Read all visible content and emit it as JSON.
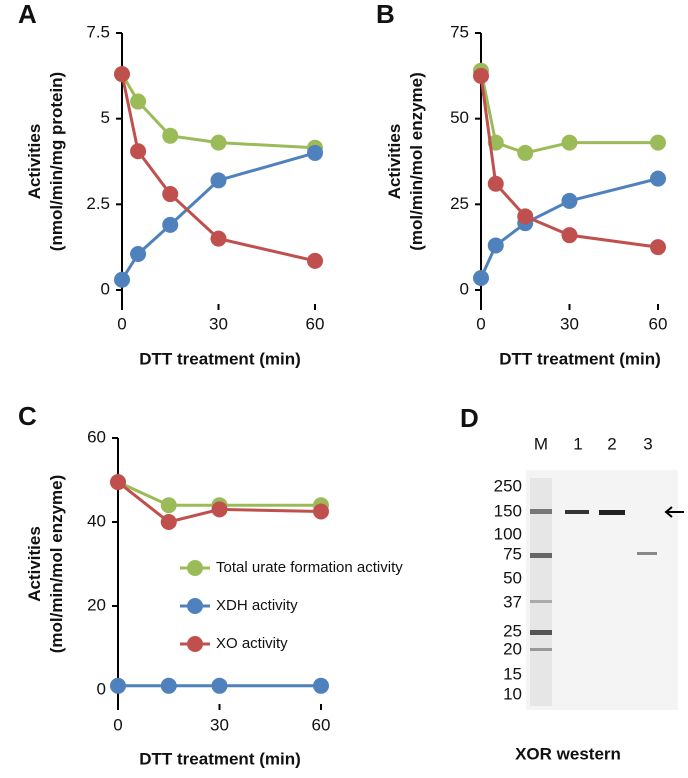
{
  "chart_data": [
    {
      "type": "line",
      "panel": "A",
      "xlabel": "DTT treatment (min)",
      "ylabel": [
        "Activities",
        "(nmol/min/mg protein)"
      ],
      "x": [
        0,
        5,
        15,
        30,
        60
      ],
      "xlim": [
        0,
        60
      ],
      "xticks": [
        0,
        30,
        60
      ],
      "ylim": [
        0,
        7.5
      ],
      "yticks": [
        0,
        2.5,
        5,
        7.5
      ],
      "series": [
        {
          "color": "#9bbb59",
          "values": [
            6.3,
            5.5,
            4.5,
            4.3,
            4.15
          ]
        },
        {
          "color": "#4f81bd",
          "values": [
            0.3,
            1.05,
            1.9,
            3.2,
            4.0
          ]
        },
        {
          "color": "#c0504d",
          "values": [
            6.3,
            4.05,
            2.8,
            1.5,
            0.85
          ]
        }
      ]
    },
    {
      "type": "line",
      "panel": "B",
      "xlabel": "DTT treatment (min)",
      "ylabel": [
        "Activities",
        "(mol/min/mol enzyme)"
      ],
      "x": [
        0,
        5,
        15,
        30,
        60
      ],
      "xlim": [
        0,
        60
      ],
      "xticks": [
        0,
        30,
        60
      ],
      "ylim": [
        0,
        75
      ],
      "yticks": [
        0,
        25,
        50,
        75
      ],
      "series": [
        {
          "color": "#9bbb59",
          "values": [
            64,
            43,
            40,
            43,
            43
          ]
        },
        {
          "color": "#4f81bd",
          "values": [
            3.5,
            13,
            19.5,
            26,
            32.5
          ]
        },
        {
          "color": "#c0504d",
          "values": [
            62.5,
            31,
            21.5,
            16,
            12.5
          ]
        }
      ]
    },
    {
      "type": "line",
      "panel": "C",
      "xlabel": "DTT treatment (min)",
      "ylabel": [
        "Activities",
        "(mol/min/mol enzyme)"
      ],
      "x": [
        0,
        15,
        30,
        60
      ],
      "xlim": [
        0,
        60
      ],
      "xticks": [
        0,
        30,
        60
      ],
      "ylim": [
        0,
        60
      ],
      "yticks": [
        0,
        20,
        40,
        60
      ],
      "series": [
        {
          "name": "Total urate formation activity",
          "color": "#9bbb59",
          "values": [
            49.5,
            44,
            44,
            44
          ]
        },
        {
          "name": "XDH activity",
          "color": "#4f81bd",
          "values": [
            1,
            1,
            1,
            1
          ]
        },
        {
          "name": "XO activity",
          "color": "#c0504d",
          "values": [
            49.5,
            40,
            43,
            42.5
          ]
        }
      ]
    }
  ],
  "blot": {
    "panel": "D",
    "lanes": [
      "M",
      "1",
      "2",
      "3"
    ],
    "markers": [
      "250",
      "150",
      "100",
      "75",
      "50",
      "37",
      "25",
      "20",
      "15",
      "10"
    ],
    "caption": "XOR western"
  }
}
